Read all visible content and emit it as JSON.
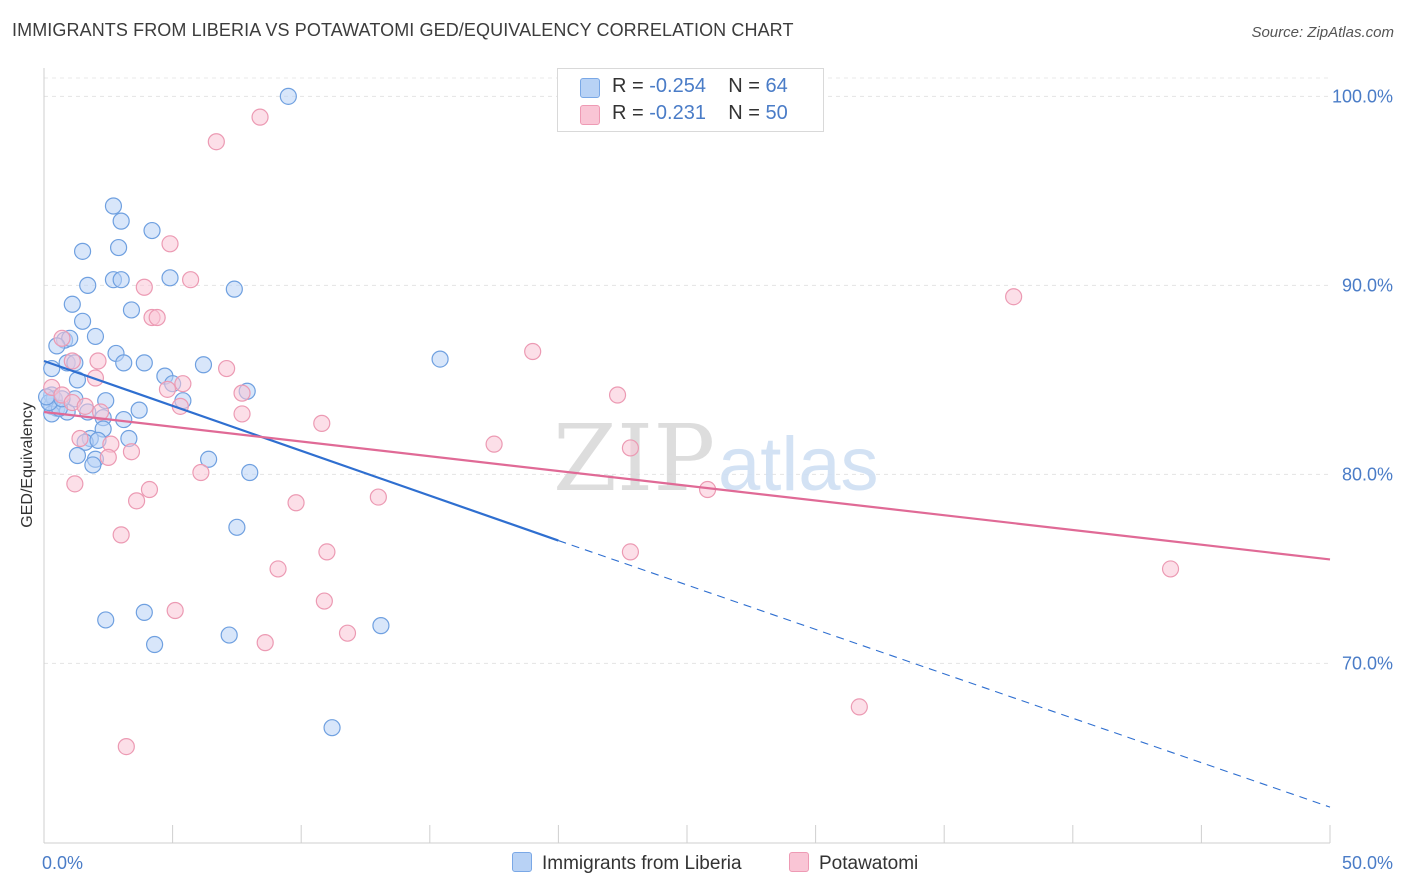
{
  "title": "IMMIGRANTS FROM LIBERIA VS POTAWATOMI GED/EQUIVALENCY CORRELATION CHART",
  "source": "Source: ZipAtlas.com",
  "watermark": {
    "zip": "ZIP",
    "atlas": "atlas"
  },
  "legend": {
    "rows": [
      {
        "r_label": "R = ",
        "r_value": "-0.254",
        "n_label": "N = ",
        "n_value": "64",
        "color": "#b8d2f5",
        "border": "#7aa8e6"
      },
      {
        "r_label": "R = ",
        "r_value": " -0.231",
        "n_label": "N = ",
        "n_value": "50",
        "color": "#f9c5d5",
        "border": "#ee9ab4"
      }
    ]
  },
  "bottom_legend": {
    "series1": "Immigrants from Liberia",
    "series2": "Potawatomi"
  },
  "chart_data": {
    "type": "scatter",
    "ylabel": "GED/Equivalency",
    "xlim": [
      0,
      50
    ],
    "ylim": [
      60.5,
      101.5
    ],
    "x_tick_labels": {
      "min": "0.0%",
      "max": "50.0%"
    },
    "y_ticks": [
      {
        "value": 100,
        "label": "100.0%"
      },
      {
        "value": 90,
        "label": "90.0%"
      },
      {
        "value": 80,
        "label": "80.0%"
      },
      {
        "value": 70,
        "label": "70.0%"
      }
    ],
    "grid": true,
    "series": [
      {
        "name": "Immigrants from Liberia",
        "color": "#b8d2f5",
        "stroke": "#6fa0e0",
        "trend_color": "#2f6fd0",
        "trend": {
          "x0": 0,
          "y0": 86.0,
          "x1": 20.0,
          "y1": 76.5,
          "dash_to_x": 50,
          "dash_to_y": 62.4
        },
        "points": [
          [
            9.5,
            100.0
          ],
          [
            2.7,
            94.2
          ],
          [
            2.9,
            92.0
          ],
          [
            3.0,
            93.4
          ],
          [
            4.2,
            92.9
          ],
          [
            1.5,
            91.8
          ],
          [
            2.7,
            90.3
          ],
          [
            3.0,
            90.3
          ],
          [
            4.9,
            90.4
          ],
          [
            7.4,
            89.8
          ],
          [
            1.7,
            90.0
          ],
          [
            3.4,
            88.7
          ],
          [
            1.1,
            89.0
          ],
          [
            1.5,
            88.1
          ],
          [
            0.8,
            87.1
          ],
          [
            1.0,
            87.2
          ],
          [
            2.0,
            87.3
          ],
          [
            0.5,
            86.8
          ],
          [
            2.8,
            86.4
          ],
          [
            0.9,
            85.9
          ],
          [
            1.2,
            85.9
          ],
          [
            3.1,
            85.9
          ],
          [
            3.9,
            85.9
          ],
          [
            6.2,
            85.8
          ],
          [
            15.4,
            86.1
          ],
          [
            4.7,
            85.2
          ],
          [
            0.3,
            85.6
          ],
          [
            1.3,
            85.0
          ],
          [
            5.0,
            84.8
          ],
          [
            7.9,
            84.4
          ],
          [
            5.4,
            83.9
          ],
          [
            2.4,
            83.9
          ],
          [
            0.3,
            83.6
          ],
          [
            0.5,
            83.5
          ],
          [
            0.9,
            83.3
          ],
          [
            1.7,
            83.3
          ],
          [
            3.7,
            83.4
          ],
          [
            0.3,
            83.2
          ],
          [
            3.1,
            82.9
          ],
          [
            2.3,
            83.0
          ],
          [
            2.3,
            82.4
          ],
          [
            1.8,
            81.9
          ],
          [
            3.3,
            81.9
          ],
          [
            1.6,
            81.7
          ],
          [
            2.1,
            81.8
          ],
          [
            1.3,
            81.0
          ],
          [
            2.0,
            80.8
          ],
          [
            1.9,
            80.5
          ],
          [
            6.4,
            80.8
          ],
          [
            8.0,
            80.1
          ],
          [
            7.5,
            77.2
          ],
          [
            0.3,
            84.2
          ],
          [
            0.4,
            84.0
          ],
          [
            0.6,
            83.5
          ],
          [
            0.2,
            83.8
          ],
          [
            2.4,
            72.3
          ],
          [
            3.9,
            72.7
          ],
          [
            7.2,
            71.5
          ],
          [
            13.1,
            72.0
          ],
          [
            4.3,
            71.0
          ],
          [
            11.2,
            66.6
          ],
          [
            1.2,
            84.0
          ],
          [
            0.7,
            84.0
          ],
          [
            0.1,
            84.1
          ]
        ]
      },
      {
        "name": "Potawatomi",
        "color": "#f9c5d5",
        "stroke": "#ec9ab3",
        "trend_color": "#e06a96",
        "trend": {
          "x0": 0,
          "y0": 83.3,
          "x1": 50,
          "y1": 75.5
        },
        "points": [
          [
            8.4,
            98.9
          ],
          [
            6.7,
            97.6
          ],
          [
            4.9,
            92.2
          ],
          [
            5.7,
            90.3
          ],
          [
            3.9,
            89.9
          ],
          [
            4.2,
            88.3
          ],
          [
            4.4,
            88.3
          ],
          [
            37.7,
            89.4
          ],
          [
            0.7,
            87.2
          ],
          [
            1.1,
            86.0
          ],
          [
            2.1,
            86.0
          ],
          [
            7.1,
            85.6
          ],
          [
            19.0,
            86.5
          ],
          [
            2.0,
            85.1
          ],
          [
            4.8,
            84.5
          ],
          [
            5.4,
            84.8
          ],
          [
            0.3,
            84.6
          ],
          [
            0.7,
            84.2
          ],
          [
            7.7,
            84.3
          ],
          [
            22.3,
            84.2
          ],
          [
            1.1,
            83.8
          ],
          [
            1.6,
            83.6
          ],
          [
            5.3,
            83.6
          ],
          [
            2.2,
            83.3
          ],
          [
            7.7,
            83.2
          ],
          [
            10.8,
            82.7
          ],
          [
            1.4,
            81.9
          ],
          [
            2.6,
            81.6
          ],
          [
            3.4,
            81.2
          ],
          [
            2.5,
            80.9
          ],
          [
            6.1,
            80.1
          ],
          [
            17.5,
            81.6
          ],
          [
            22.8,
            81.4
          ],
          [
            1.2,
            79.5
          ],
          [
            4.1,
            79.2
          ],
          [
            3.6,
            78.6
          ],
          [
            9.8,
            78.5
          ],
          [
            13.0,
            78.8
          ],
          [
            25.8,
            79.2
          ],
          [
            3.0,
            76.8
          ],
          [
            11.0,
            75.9
          ],
          [
            9.1,
            75.0
          ],
          [
            22.8,
            75.9
          ],
          [
            43.8,
            75.0
          ],
          [
            10.9,
            73.3
          ],
          [
            5.1,
            72.8
          ],
          [
            11.8,
            71.6
          ],
          [
            8.6,
            71.1
          ],
          [
            31.7,
            67.7
          ],
          [
            3.2,
            65.6
          ]
        ]
      }
    ]
  }
}
